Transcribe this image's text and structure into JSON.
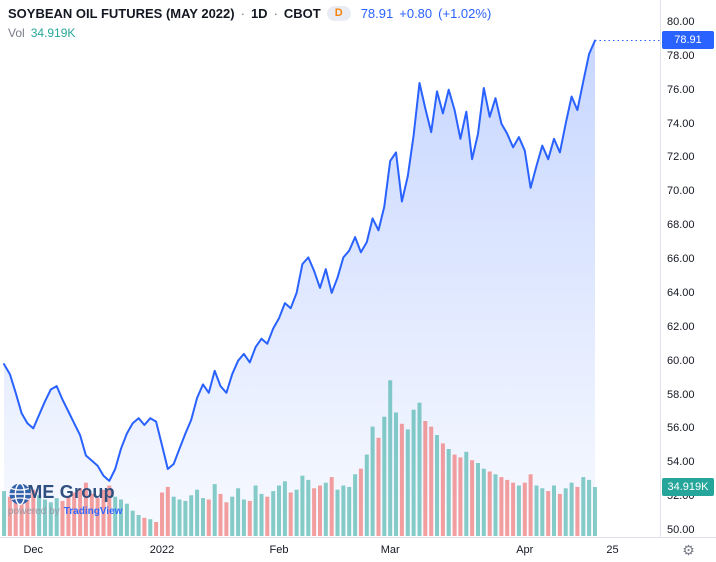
{
  "header": {
    "title": "SOYBEAN OIL FUTURES (MAY 2022)",
    "separator": "·",
    "interval": "1D",
    "exchange": "CBOT",
    "delayed_badge": "D",
    "last_price": "78.91",
    "change": "+0.80",
    "change_pct": "(+1.02%)",
    "vol_label": "Vol",
    "vol_value": "34.919K"
  },
  "price_scale": {
    "last_price_badge": "78.91",
    "volume_badge": "34.919K"
  },
  "footer": {
    "logo_text": "CME Group",
    "powered_by": "powered by",
    "brand": "TradingView"
  },
  "icons": {
    "gear": "⚙"
  },
  "colors": {
    "line": "#2962FF",
    "area_top": "rgba(41,98,255,0.26)",
    "area_bottom": "rgba(41,98,255,0.03)",
    "vol_up": "rgba(38,166,154,0.55)",
    "vol_down": "rgba(239,83,80,0.55)",
    "price_badge_bg": "#2962FF",
    "vol_badge_bg": "#26a69a",
    "axis_text": "#131722"
  },
  "chart_data": {
    "type": "area",
    "title": "SOYBEAN OIL FUTURES (MAY 2022) · 1D · CBOT",
    "xlabel": "",
    "ylabel": "",
    "ylim": [
      50,
      80
    ],
    "y_tick_step": 2,
    "grid": false,
    "legend_position": "none",
    "last_price": 78.91,
    "change": 0.8,
    "change_percent": 1.02,
    "last_volume_k": 34.919,
    "x_ticks": [
      {
        "label": "Dec",
        "index": 5
      },
      {
        "label": "2022",
        "index": 27
      },
      {
        "label": "Feb",
        "index": 47
      },
      {
        "label": "Mar",
        "index": 66
      },
      {
        "label": "Apr",
        "index": 89
      },
      {
        "label": "25",
        "index": 104
      }
    ],
    "x": [
      "2021-11-23",
      "2021-11-24",
      "2021-11-26",
      "2021-11-29",
      "2021-11-30",
      "2021-12-01",
      "2021-12-02",
      "2021-12-03",
      "2021-12-06",
      "2021-12-07",
      "2021-12-08",
      "2021-12-09",
      "2021-12-10",
      "2021-12-13",
      "2021-12-14",
      "2021-12-15",
      "2021-12-16",
      "2021-12-17",
      "2021-12-20",
      "2021-12-21",
      "2021-12-22",
      "2021-12-23",
      "2021-12-27",
      "2021-12-28",
      "2021-12-29",
      "2021-12-30",
      "2021-12-31",
      "2022-01-03",
      "2022-01-04",
      "2022-01-05",
      "2022-01-06",
      "2022-01-07",
      "2022-01-10",
      "2022-01-11",
      "2022-01-12",
      "2022-01-13",
      "2022-01-14",
      "2022-01-18",
      "2022-01-19",
      "2022-01-20",
      "2022-01-21",
      "2022-01-24",
      "2022-01-25",
      "2022-01-26",
      "2022-01-27",
      "2022-01-28",
      "2022-01-31",
      "2022-02-01",
      "2022-02-02",
      "2022-02-03",
      "2022-02-04",
      "2022-02-07",
      "2022-02-08",
      "2022-02-09",
      "2022-02-10",
      "2022-02-11",
      "2022-02-14",
      "2022-02-15",
      "2022-02-16",
      "2022-02-17",
      "2022-02-18",
      "2022-02-22",
      "2022-02-23",
      "2022-02-24",
      "2022-02-25",
      "2022-02-28",
      "2022-03-01",
      "2022-03-02",
      "2022-03-03",
      "2022-03-04",
      "2022-03-07",
      "2022-03-08",
      "2022-03-09",
      "2022-03-10",
      "2022-03-11",
      "2022-03-14",
      "2022-03-15",
      "2022-03-16",
      "2022-03-17",
      "2022-03-18",
      "2022-03-21",
      "2022-03-22",
      "2022-03-23",
      "2022-03-24",
      "2022-03-25",
      "2022-03-28",
      "2022-03-29",
      "2022-03-30",
      "2022-03-31",
      "2022-04-01",
      "2022-04-04",
      "2022-04-05",
      "2022-04-06",
      "2022-04-07",
      "2022-04-08",
      "2022-04-11",
      "2022-04-12",
      "2022-04-13",
      "2022-04-14",
      "2022-04-18",
      "2022-04-19",
      "2022-04-20"
    ],
    "series": [
      {
        "name": "close",
        "type": "area",
        "values": [
          59.8,
          59.2,
          58.1,
          56.9,
          56.3,
          56.0,
          56.8,
          57.6,
          58.3,
          58.5,
          57.7,
          57.0,
          56.3,
          55.6,
          54.4,
          54.1,
          53.8,
          53.2,
          52.9,
          53.6,
          54.8,
          55.7,
          56.3,
          56.6,
          56.2,
          56.6,
          56.4,
          55.0,
          53.6,
          53.9,
          54.8,
          55.7,
          56.5,
          57.8,
          58.6,
          58.1,
          59.4,
          58.5,
          58.1,
          59.2,
          60.0,
          60.4,
          59.9,
          60.8,
          61.3,
          61.0,
          61.9,
          62.5,
          63.4,
          63.1,
          64.0,
          65.7,
          66.1,
          65.3,
          64.3,
          65.4,
          64.0,
          64.9,
          66.1,
          66.5,
          67.3,
          66.4,
          67.0,
          68.4,
          67.7,
          69.1,
          71.8,
          72.3,
          69.4,
          70.9,
          73.3,
          76.4,
          74.9,
          73.5,
          75.9,
          74.6,
          76.0,
          74.8,
          73.1,
          74.7,
          71.9,
          73.4,
          76.1,
          74.4,
          75.5,
          74.0,
          73.4,
          72.6,
          73.2,
          72.4,
          70.2,
          71.5,
          72.7,
          71.9,
          73.1,
          72.3,
          74.0,
          75.6,
          74.8,
          76.5,
          78.11,
          78.91
        ]
      },
      {
        "name": "volume_k",
        "type": "bar",
        "values": [
          32,
          28,
          35,
          30,
          27,
          33,
          29,
          26,
          24,
          27,
          25,
          28,
          31,
          34,
          38,
          30,
          27,
          33,
          36,
          28,
          26,
          23,
          18,
          15,
          13,
          12,
          10,
          31,
          35,
          28,
          26,
          25,
          29,
          33,
          27,
          26,
          37,
          30,
          24,
          28,
          34,
          26,
          25,
          36,
          30,
          28,
          32,
          36,
          39,
          31,
          33,
          43,
          40,
          34,
          36,
          38,
          42,
          33,
          36,
          35,
          44,
          48,
          58,
          78,
          70,
          85,
          111,
          88,
          80,
          76,
          90,
          95,
          82,
          78,
          72,
          66,
          62,
          58,
          56,
          60,
          54,
          52,
          48,
          46,
          44,
          42,
          40,
          38,
          36,
          38,
          44,
          36,
          34,
          32,
          36,
          30,
          34,
          38,
          35,
          42,
          40,
          34.919
        ]
      }
    ]
  }
}
